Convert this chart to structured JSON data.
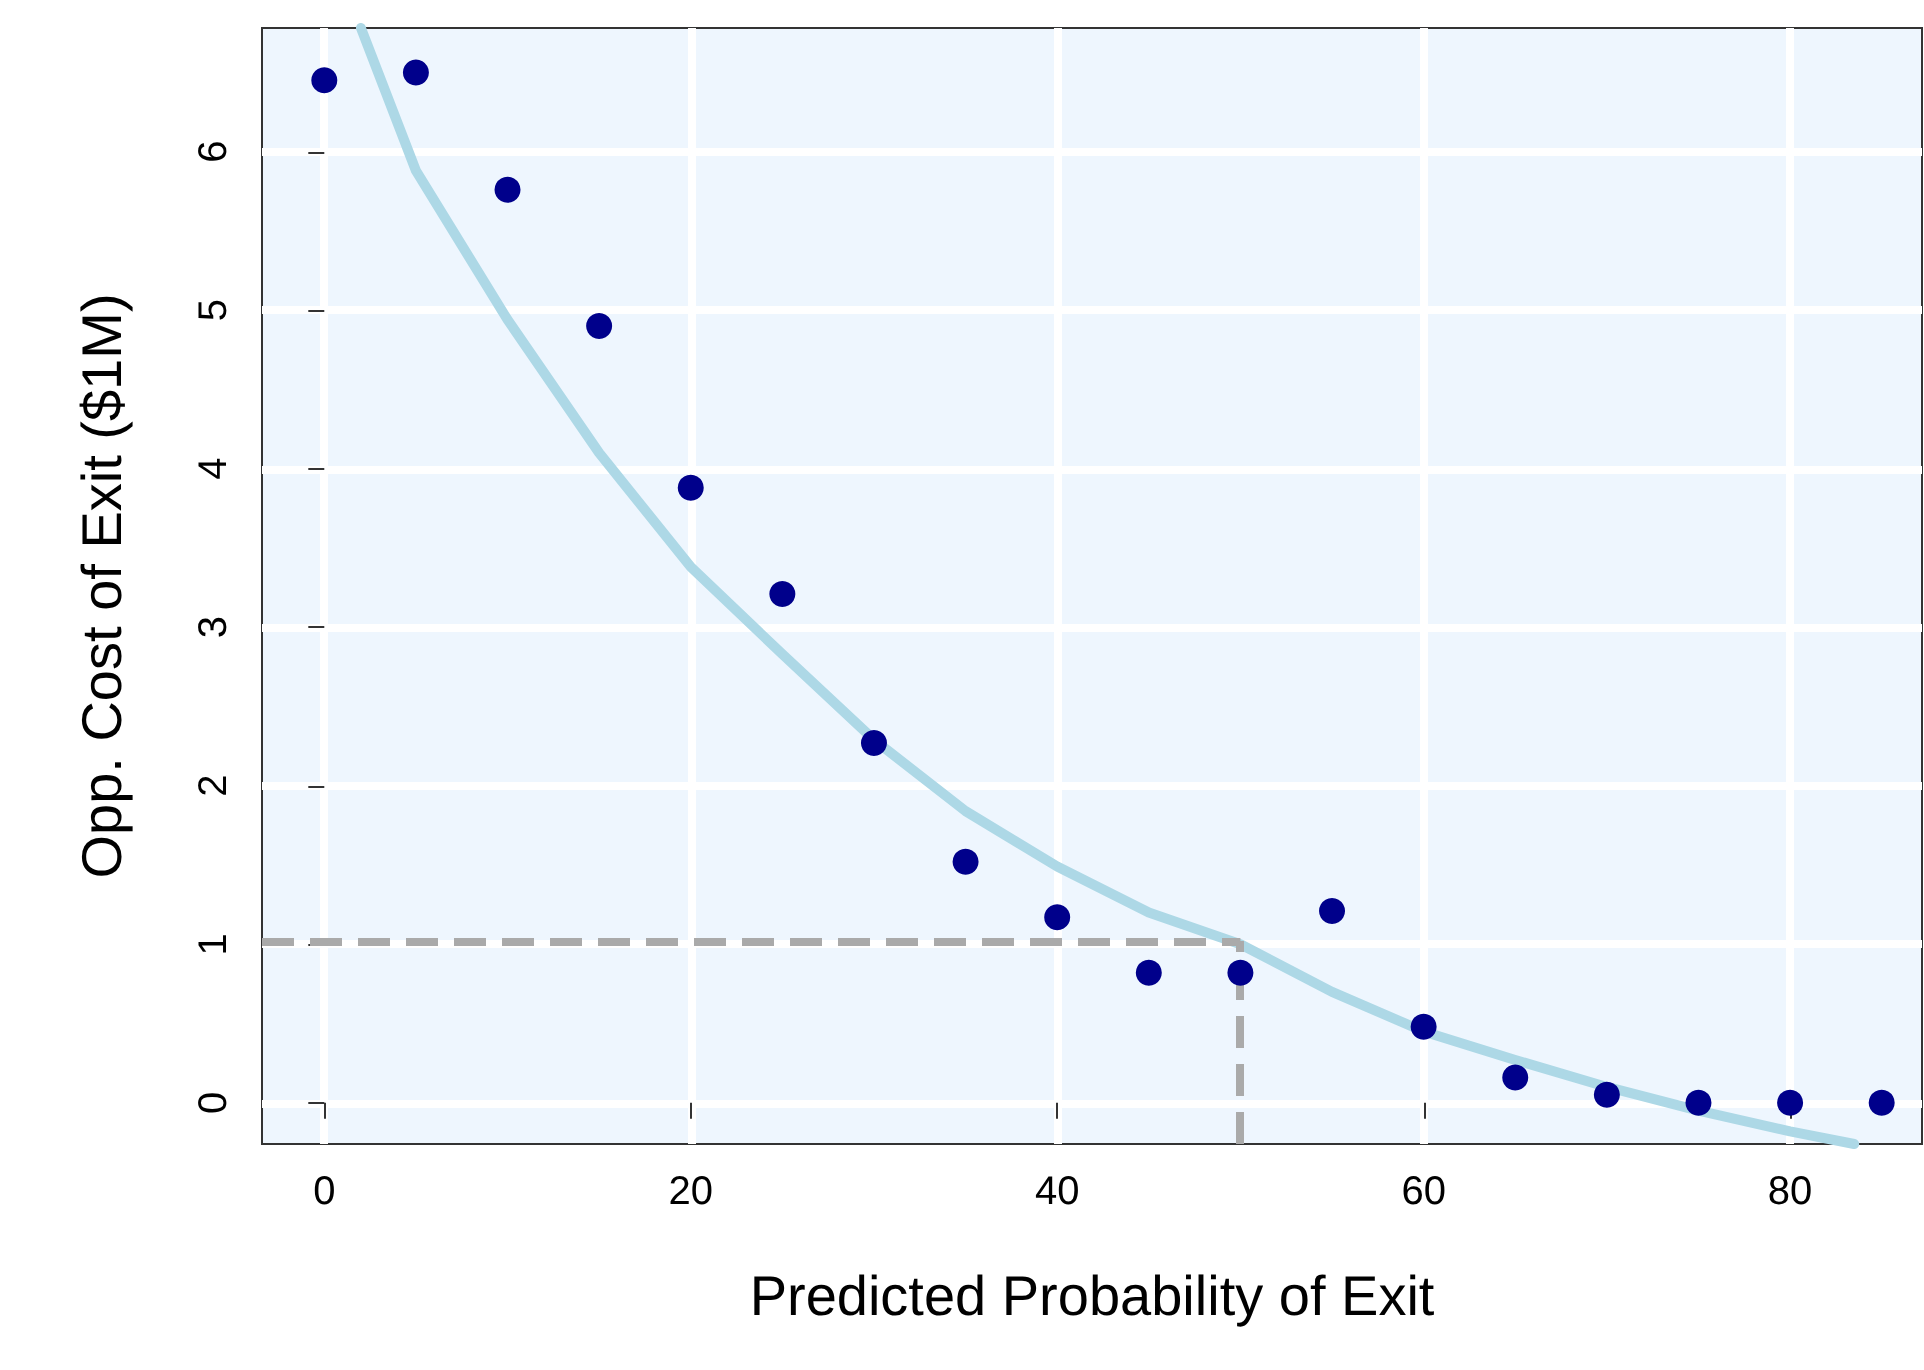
{
  "chart_data": {
    "type": "scatter",
    "xlabel": "Predicted Probability of Exit",
    "ylabel": "Opp. Cost of Exit ($1M)",
    "xlim": [
      -3.4,
      87.2
    ],
    "ylim": [
      -0.26,
      6.78
    ],
    "xticks": [
      0,
      20,
      40,
      60,
      80
    ],
    "yticks": [
      0,
      1,
      2,
      3,
      4,
      5,
      6
    ],
    "grid": true,
    "series": [
      {
        "marker": "circle",
        "color": "#00008b",
        "x": [
          0,
          5,
          10,
          15,
          20,
          25,
          30,
          35,
          40,
          45,
          50,
          55,
          60,
          65,
          70,
          75,
          80,
          85
        ],
        "values": [
          6.45,
          6.5,
          5.76,
          4.9,
          3.88,
          3.21,
          2.27,
          1.52,
          1.17,
          0.82,
          0.82,
          1.21,
          0.48,
          0.16,
          0.05,
          0,
          0,
          0
        ]
      },
      {
        "type": "line",
        "marker": "none",
        "color": "#add8e6",
        "line_style": "solid",
        "x": [
          2,
          5,
          10,
          15,
          20,
          25,
          30,
          35,
          40,
          45,
          50,
          55,
          60,
          65,
          70,
          75,
          80,
          83.5
        ],
        "values": [
          6.78,
          5.88,
          4.94,
          4.1,
          3.38,
          2.83,
          2.29,
          1.84,
          1.49,
          1.2,
          1.0,
          0.7,
          0.45,
          0.27,
          0.1,
          -0.05,
          -0.18,
          -0.26
        ]
      }
    ],
    "ref_lines": [
      {
        "axis": "y",
        "value": 1.02,
        "color": "#aaaaaa",
        "line_style": "dashed"
      },
      {
        "axis": "x",
        "value": 50,
        "color": "#aaaaaa",
        "line_style": "dashed"
      }
    ]
  }
}
